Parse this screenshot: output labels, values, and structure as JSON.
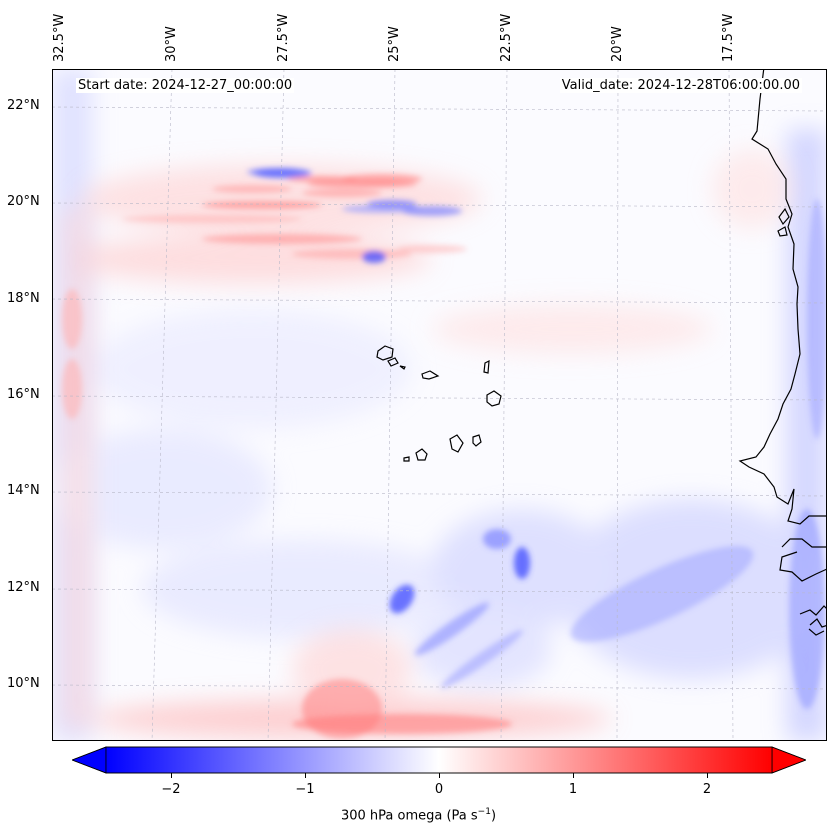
{
  "map": {
    "annotation_left": "Start date: 2024-12-27_00:00:00",
    "annotation_right": "Valid_date: 2024-12-28T06:00:00.00",
    "lon_labels": [
      "32.5°W",
      "30°W",
      "27.5°W",
      "25°W",
      "22.5°W",
      "20°W",
      "17.5°W"
    ],
    "lat_labels": [
      "22°N",
      "20°N",
      "18°N",
      "16°N",
      "14°N",
      "12°N",
      "10°N"
    ],
    "variable": "300 hPa omega",
    "colormap": "bwr",
    "colors": {
      "negative": "#0000ff",
      "zero": "#ffffff",
      "positive": "#ff0000",
      "coastline": "#000000"
    }
  },
  "colorbar": {
    "ticks": [
      "−2",
      "−1",
      "0",
      "1",
      "2"
    ],
    "label_main": "300 hPa omega (Pa s",
    "label_exp": "−1",
    "label_close": ")"
  }
}
